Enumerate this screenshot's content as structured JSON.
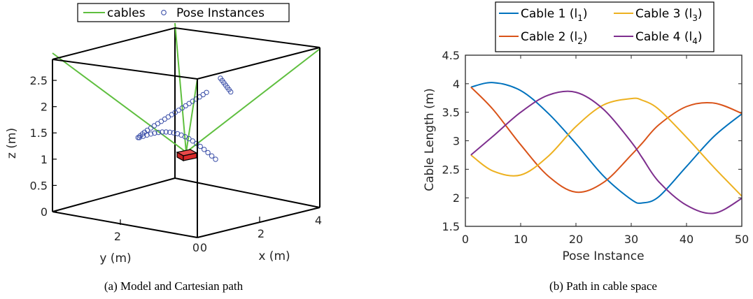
{
  "chart_data": [
    {
      "type": "scatter",
      "view": "3d",
      "caption": "(a) Model and Cartesian path",
      "xlabel": "x (m)",
      "ylabel": "y (m)",
      "zlabel": "z (m)",
      "xticks": [
        "0",
        "2",
        "4"
      ],
      "yticks": [
        "0",
        "2"
      ],
      "zticks": [
        "0",
        "0.5",
        "1",
        "1.5",
        "2",
        "2.5"
      ],
      "xlim": [
        0,
        4.2
      ],
      "ylim": [
        0,
        4.2
      ],
      "zlim": [
        0,
        2.9
      ],
      "legend": [
        "cables",
        "Pose Instances"
      ],
      "legend_position": "top",
      "colors": {
        "cables": "#5fbf3f",
        "poses": "#3b4fa8",
        "platform": "#e03030",
        "frame": "#000000"
      },
      "cables": [
        {
          "anchor": [
            4.2,
            0,
            2.9
          ],
          "attach": [
            2.1,
            2.1,
            1.05
          ]
        },
        {
          "anchor": [
            0,
            4.2,
            2.9
          ],
          "attach": [
            2.1,
            2.1,
            1.05
          ]
        },
        {
          "anchor": [
            4.2,
            4.2,
            2.9
          ],
          "attach": [
            2.1,
            2.1,
            1.05
          ]
        },
        {
          "anchor": [
            0,
            0,
            2.9
          ],
          "attach": [
            2.1,
            2.1,
            1.05
          ]
        }
      ],
      "platform_center": [
        2.1,
        2.1,
        1.0
      ]
    },
    {
      "type": "line",
      "caption": "(b) Path in cable space",
      "xlabel": "Pose Instance",
      "ylabel": "Cable Length (m)",
      "xlim": [
        0,
        50
      ],
      "ylim": [
        1.5,
        4.5
      ],
      "xticks": [
        "0",
        "10",
        "20",
        "30",
        "40",
        "50"
      ],
      "yticks": [
        "1.5",
        "2",
        "2.5",
        "3",
        "3.5",
        "4",
        "4.5"
      ],
      "legend_position": "top",
      "x": [
        1,
        5,
        10,
        15,
        20,
        25,
        30,
        32,
        35,
        40,
        45,
        50
      ],
      "series": [
        {
          "name": "Cable 1 (l",
          "sub": "1",
          "color": "#0072bd",
          "values": [
            3.94,
            4.02,
            3.88,
            3.48,
            2.95,
            2.38,
            1.97,
            1.91,
            2.02,
            2.55,
            3.08,
            3.47
          ]
        },
        {
          "name": "Cable 2 (l",
          "sub": "2",
          "color": "#d95319",
          "values": [
            3.94,
            3.55,
            2.93,
            2.38,
            2.1,
            2.27,
            2.75,
            2.96,
            3.28,
            3.6,
            3.66,
            3.48
          ]
        },
        {
          "name": "Cable 3 (l",
          "sub": "3",
          "color": "#edb120",
          "values": [
            2.75,
            2.47,
            2.4,
            2.73,
            3.25,
            3.63,
            3.74,
            3.71,
            3.55,
            3.06,
            2.53,
            2.03
          ]
        },
        {
          "name": "Cable 4 (l",
          "sub": "4",
          "color": "#7e2f8e",
          "values": [
            2.75,
            3.08,
            3.5,
            3.8,
            3.85,
            3.55,
            2.98,
            2.7,
            2.28,
            1.87,
            1.73,
            1.99
          ]
        }
      ]
    }
  ]
}
